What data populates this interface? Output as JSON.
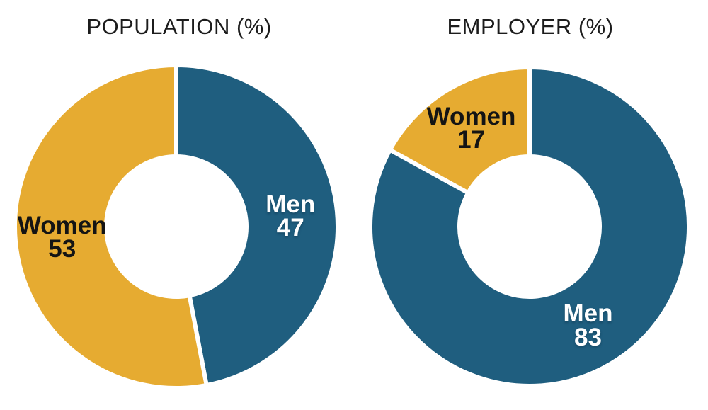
{
  "page": {
    "background_color": "#FFFFFF",
    "description": "Two donut charts comparing gender share of population vs employers"
  },
  "chart_data": [
    {
      "type": "pie",
      "subtype": "donut",
      "title": "POPULATION (%)",
      "unit": "%",
      "categories": [
        "Men",
        "Women"
      ],
      "values": [
        47,
        53
      ],
      "colors": {
        "Men": "#1F5E7F",
        "Women": "#E6AB31"
      },
      "label_colors": {
        "Men": "#FFFFFF",
        "Women": "#141414"
      },
      "start_angle": "top",
      "direction": "clockwise",
      "legend": "none",
      "labels": "inside slices, category name above value"
    },
    {
      "type": "pie",
      "subtype": "donut",
      "title": "EMPLOYER (%)",
      "unit": "%",
      "categories": [
        "Men",
        "Women"
      ],
      "values": [
        83,
        17
      ],
      "colors": {
        "Men": "#1F5E7F",
        "Women": "#E6AB31"
      },
      "label_colors": {
        "Men": "#FFFFFF",
        "Women": "#141414"
      },
      "start_angle": "top",
      "direction": "clockwise",
      "legend": "none",
      "labels": "inside slices, category name above value"
    }
  ]
}
